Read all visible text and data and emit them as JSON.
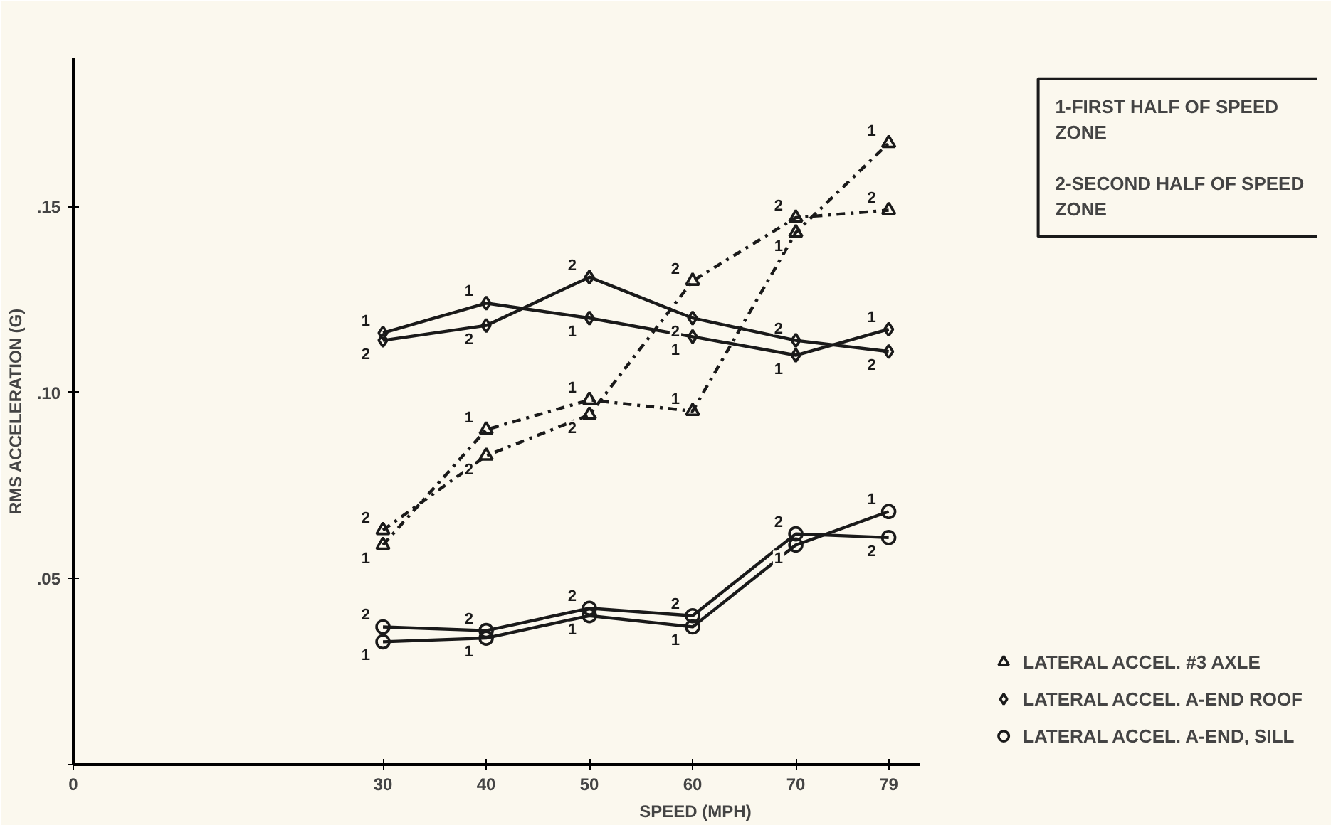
{
  "chart_data": {
    "type": "line",
    "xlabel": "SPEED (MPH)",
    "ylabel": "RMS ACCELERATION (G)",
    "x": [
      30,
      40,
      50,
      60,
      70,
      79
    ],
    "xlim": [
      0,
      82
    ],
    "xticks": [
      0,
      30,
      40,
      50,
      60,
      70,
      79
    ],
    "ylim": [
      0,
      0.19
    ],
    "yticks": [
      {
        "value": 0,
        "label": null
      },
      {
        "value": 0.05,
        "label": ".05"
      },
      {
        "value": 0.1,
        "label": ".10"
      },
      {
        "value": 0.15,
        "label": ".15"
      }
    ],
    "grid": false,
    "legend": "bottom right",
    "annotations": [
      "1-FIRST HALF OF SPEED ZONE",
      "2-SECOND HALF OF SPEED ZONE",
      {
        "text": "1",
        "x": 30,
        "y": 0.059
      },
      {
        "text": "1",
        "x": 40,
        "y": 0.09
      },
      {
        "text": "1",
        "x": 50,
        "y": 0.098
      },
      {
        "text": "1",
        "x": 60,
        "y": 0.095
      },
      {
        "text": "1",
        "x": 70,
        "y": 0.143
      },
      {
        "text": "1",
        "x": 79,
        "y": 0.167
      },
      {
        "text": "2",
        "x": 30,
        "y": 0.063
      },
      {
        "text": "2",
        "x": 40,
        "y": 0.083
      },
      {
        "text": "2",
        "x": 50,
        "y": 0.094
      },
      {
        "text": "2",
        "x": 60,
        "y": 0.13
      },
      {
        "text": "2",
        "x": 70,
        "y": 0.147
      },
      {
        "text": "2",
        "x": 79,
        "y": 0.149
      },
      {
        "text": "1",
        "x": 30,
        "y": 0.116
      },
      {
        "text": "1",
        "x": 40,
        "y": 0.124
      },
      {
        "text": "1",
        "x": 50,
        "y": 0.12
      },
      {
        "text": "1",
        "x": 60,
        "y": 0.115
      },
      {
        "text": "1",
        "x": 70,
        "y": 0.11
      },
      {
        "text": "1",
        "x": 79,
        "y": 0.117
      },
      {
        "text": "2",
        "x": 30,
        "y": 0.114
      },
      {
        "text": "2",
        "x": 40,
        "y": 0.118
      },
      {
        "text": "2",
        "x": 50,
        "y": 0.131
      },
      {
        "text": "2",
        "x": 60,
        "y": 0.12
      },
      {
        "text": "2",
        "x": 70,
        "y": 0.114
      },
      {
        "text": "2",
        "x": 79,
        "y": 0.111
      },
      {
        "text": "1",
        "x": 30,
        "y": 0.033
      },
      {
        "text": "1",
        "x": 40,
        "y": 0.034
      },
      {
        "text": "1",
        "x": 50,
        "y": 0.04
      },
      {
        "text": "1",
        "x": 60,
        "y": 0.037
      },
      {
        "text": "1",
        "x": 70,
        "y": 0.059
      },
      {
        "text": "1",
        "x": 79,
        "y": 0.068
      },
      {
        "text": "2",
        "x": 30,
        "y": 0.037
      },
      {
        "text": "2",
        "x": 40,
        "y": 0.036
      },
      {
        "text": "2",
        "x": 50,
        "y": 0.042
      },
      {
        "text": "2",
        "x": 60,
        "y": 0.04
      },
      {
        "text": "2",
        "x": 70,
        "y": 0.062
      },
      {
        "text": "2",
        "x": 79,
        "y": 0.061
      }
    ],
    "series": [
      {
        "name": "LATERAL ACCEL. #3 AXLE",
        "color": "#1a1a1a",
        "marker": "triangle",
        "line_style": "dashdot",
        "values": [
          0.059,
          0.09,
          0.098,
          0.095,
          0.143,
          0.167
        ]
      },
      {
        "color": "#1a1a1a",
        "marker": "triangle",
        "line_style": "dashdot",
        "values": [
          0.063,
          0.083,
          0.094,
          0.13,
          0.147,
          0.149
        ]
      },
      {
        "name": "LATERAL ACCEL. A-END ROOF",
        "color": "#1a1a1a",
        "marker": "diamond",
        "line_style": "solid",
        "values": [
          0.116,
          0.124,
          0.12,
          0.115,
          0.11,
          0.117
        ]
      },
      {
        "color": "#1a1a1a",
        "marker": "diamond",
        "line_style": "solid",
        "values": [
          0.114,
          0.118,
          0.131,
          0.12,
          0.114,
          0.111
        ]
      },
      {
        "name": "LATERAL ACCEL. A-END, SILL",
        "color": "#1a1a1a",
        "marker": "circle",
        "line_style": "solid",
        "values": [
          0.033,
          0.034,
          0.04,
          0.037,
          0.059,
          0.068
        ]
      },
      {
        "color": "#1a1a1a",
        "marker": "circle",
        "line_style": "solid",
        "values": [
          0.037,
          0.036,
          0.042,
          0.04,
          0.062,
          0.061
        ]
      }
    ]
  }
}
